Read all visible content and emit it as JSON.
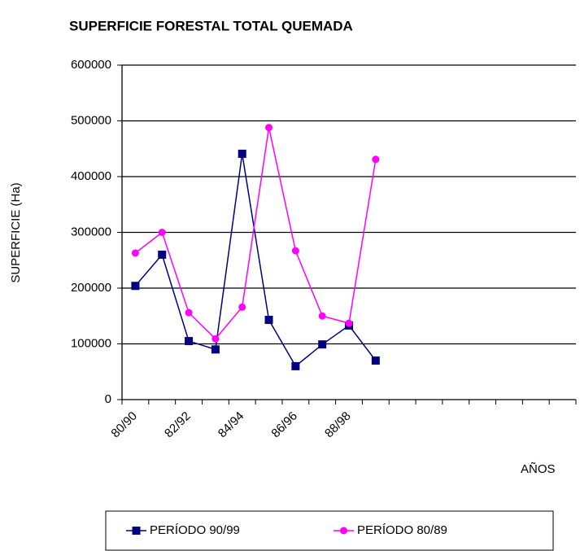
{
  "chart_data": {
    "type": "line",
    "title": "SUPERFICIE FORESTAL TOTAL QUEMADA",
    "y_label": "SUPERFICIE (Ha)",
    "x_label": "AÑOS",
    "categories": [
      "80/90",
      null,
      "82/92",
      null,
      "84/94",
      null,
      "86/96",
      null,
      "88/98",
      null,
      null,
      null,
      null,
      null,
      null,
      null,
      null
    ],
    "series": [
      {
        "name": "PERÍODO 90/99",
        "color": "#000080",
        "marker": "square",
        "values": [
          204000,
          260000,
          105000,
          90000,
          441000,
          143000,
          60000,
          99000,
          133000,
          70000,
          null,
          null,
          null,
          null,
          null,
          null,
          null
        ]
      },
      {
        "name": "PERÍODO 80/89",
        "color": "#ff00ff",
        "marker": "circle",
        "values": [
          263000,
          300000,
          156000,
          109000,
          166000,
          488000,
          267000,
          150000,
          137000,
          431000,
          null,
          null,
          null,
          null,
          null,
          null,
          null
        ]
      }
    ],
    "ylim": [
      0,
      600000
    ],
    "yticks": [
      0,
      100000,
      200000,
      300000,
      400000,
      500000,
      600000
    ],
    "grid": true
  }
}
